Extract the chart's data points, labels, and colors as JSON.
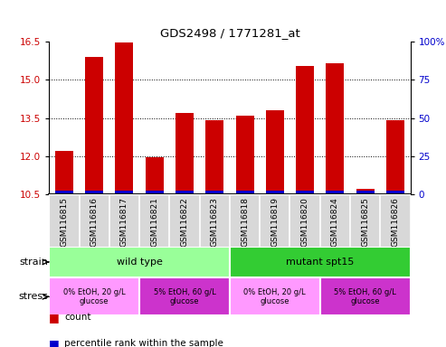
{
  "title": "GDS2498 / 1771281_at",
  "samples": [
    "GSM116815",
    "GSM116816",
    "GSM116817",
    "GSM116821",
    "GSM116822",
    "GSM116823",
    "GSM116818",
    "GSM116819",
    "GSM116820",
    "GSM116824",
    "GSM116825",
    "GSM116826"
  ],
  "count_values": [
    12.2,
    15.9,
    16.45,
    11.95,
    13.7,
    13.4,
    13.6,
    13.8,
    15.55,
    15.65,
    10.7,
    13.4
  ],
  "percentile_values": [
    2,
    4,
    5,
    2,
    3,
    2,
    4,
    4,
    5,
    5,
    1,
    3
  ],
  "ymin": 10.5,
  "ymax": 16.5,
  "yticks_left": [
    10.5,
    12.0,
    13.5,
    15.0,
    16.5
  ],
  "yticks_right": [
    0,
    25,
    50,
    75,
    100
  ],
  "bar_color_red": "#cc0000",
  "bar_color_blue": "#0000cc",
  "sample_bg_color": "#d8d8d8",
  "strain_wild_color": "#99ff99",
  "strain_mutant_color": "#33cc33",
  "stress_light_color": "#ff99ff",
  "stress_dark_color": "#cc33cc",
  "strain_info": [
    {
      "label": "wild type",
      "start": 0,
      "end": 5
    },
    {
      "label": "mutant spt15",
      "start": 6,
      "end": 11
    }
  ],
  "stress_info": [
    {
      "label": "0% EtOH, 20 g/L\nglucose",
      "start": 0,
      "end": 2,
      "light": true
    },
    {
      "label": "5% EtOH, 60 g/L\nglucose",
      "start": 3,
      "end": 5,
      "light": false
    },
    {
      "label": "0% EtOH, 20 g/L\nglucose",
      "start": 6,
      "end": 8,
      "light": true
    },
    {
      "label": "5% EtOH, 60 g/L\nglucose",
      "start": 9,
      "end": 11,
      "light": false
    }
  ],
  "legend_count_color": "#cc0000",
  "legend_pct_color": "#0000cc",
  "blue_bar_height": 0.13
}
